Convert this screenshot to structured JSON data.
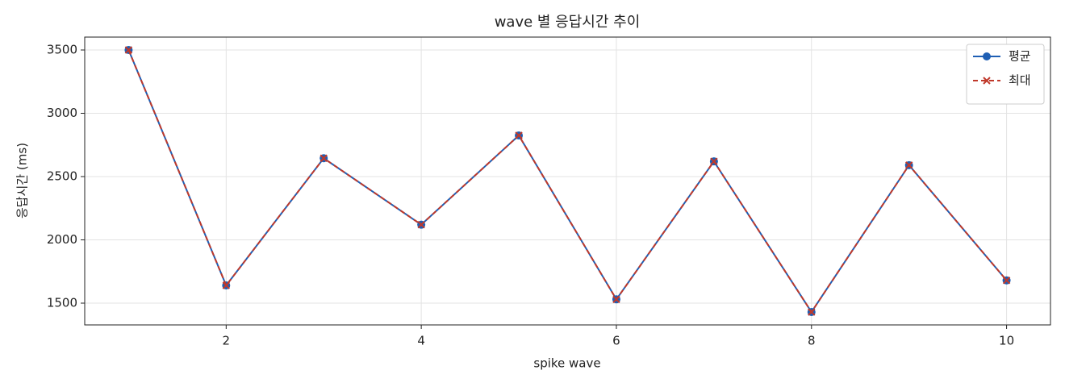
{
  "chart_data": {
    "type": "line",
    "title": "wave 별 응답시간 추이",
    "xlabel": "spike wave",
    "ylabel": "응답시간 (ms)",
    "x": [
      1,
      2,
      3,
      4,
      5,
      6,
      7,
      8,
      9,
      10
    ],
    "series": [
      {
        "name": "평균",
        "color": "#1f5fb4",
        "linestyle": "solid",
        "marker": "circle",
        "values": [
          3500,
          1640,
          2645,
          2120,
          2825,
          1530,
          2620,
          1430,
          2590,
          1680
        ]
      },
      {
        "name": "최대",
        "color": "#c0392b",
        "linestyle": "dashed",
        "marker": "x",
        "values": [
          3500,
          1640,
          2645,
          2120,
          2825,
          1530,
          2620,
          1430,
          2590,
          1680
        ]
      }
    ],
    "xlim": [
      0.55,
      10.45
    ],
    "ylim": [
      1328,
      3602
    ],
    "xticks": [
      2,
      4,
      6,
      8,
      10
    ],
    "yticks": [
      1500,
      2000,
      2500,
      3000,
      3500
    ],
    "grid": true,
    "legend": "upper right"
  }
}
